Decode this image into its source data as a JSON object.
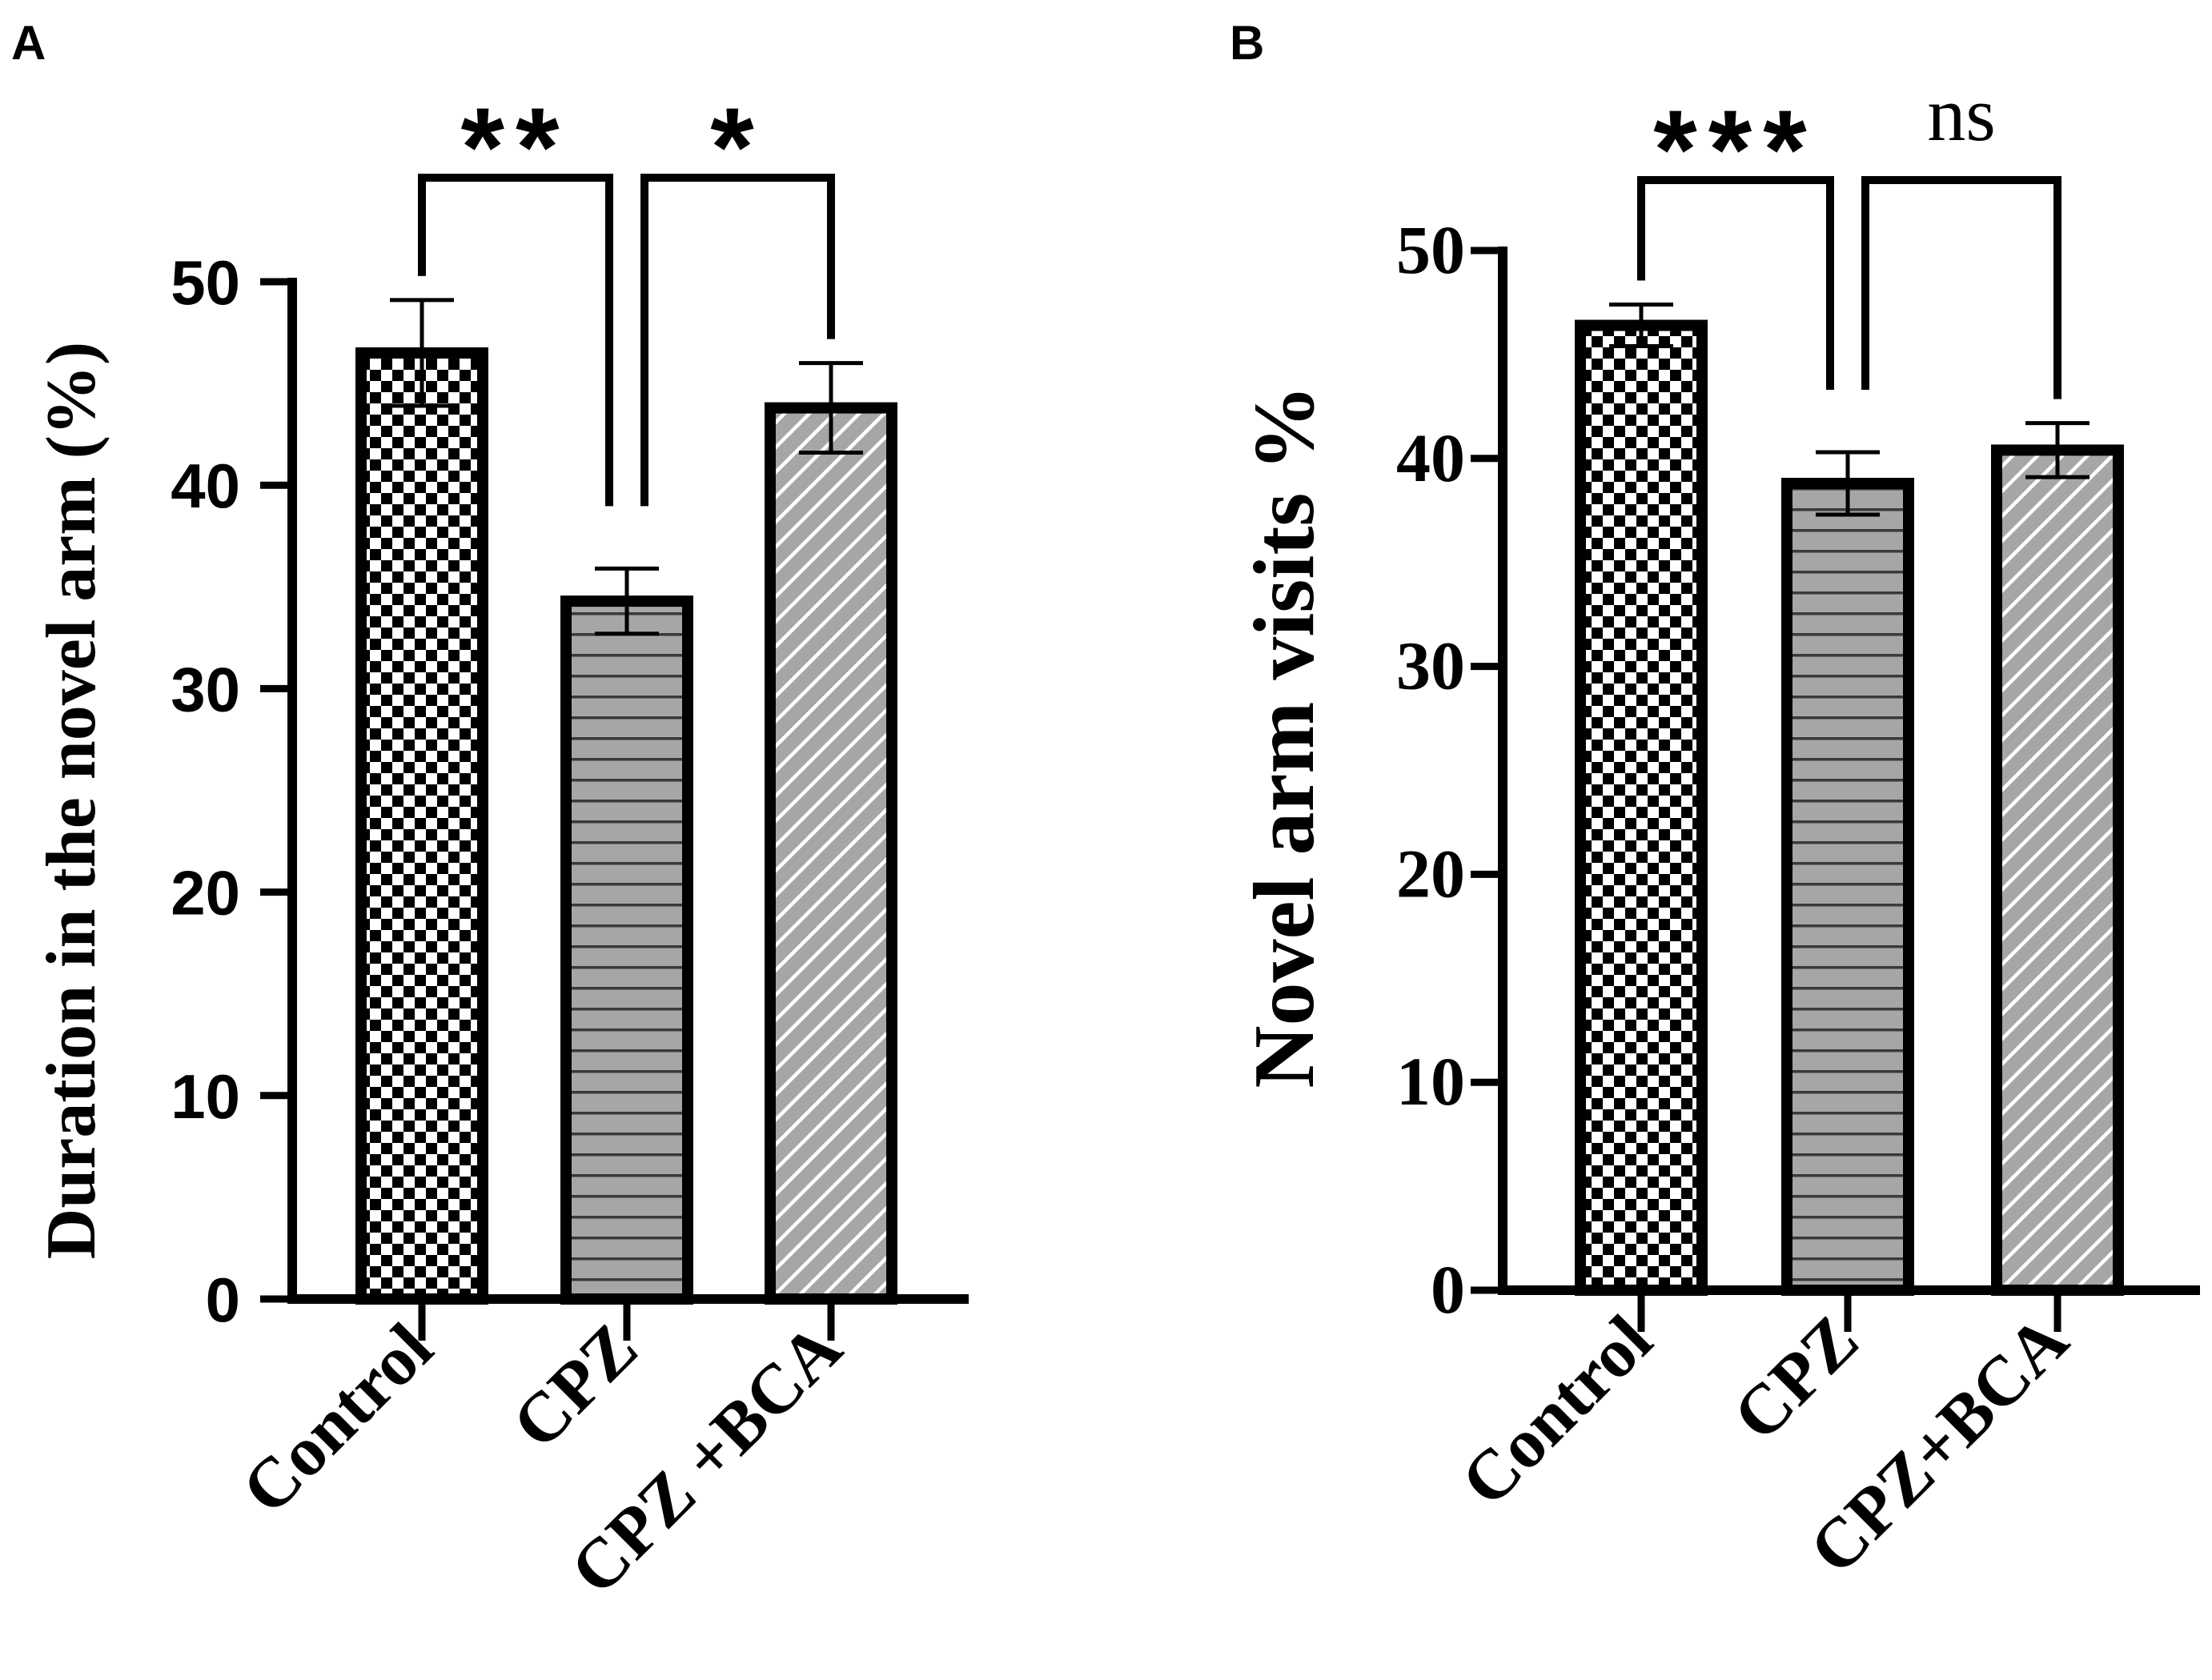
{
  "figure_title": "",
  "chart_data": [
    {
      "panel": "A",
      "type": "bar",
      "categories": [
        "Control",
        "CPZ",
        "CPZ +BCA"
      ],
      "values": [
        46.5,
        34.3,
        43.8
      ],
      "errors": [
        2.6,
        1.6,
        2.2
      ],
      "patterns": [
        "checker",
        "hlines",
        "diagonal"
      ],
      "title": "",
      "xlabel": "",
      "ylabel": "Duration in the novel arm (%)",
      "ylim": [
        0,
        50
      ],
      "yticks": [
        "0",
        "10",
        "20",
        "30",
        "40",
        "50"
      ],
      "significance": [
        {
          "from": 0,
          "to": 1,
          "label": "**"
        },
        {
          "from": 1,
          "to": 2,
          "label": "*"
        }
      ],
      "grid": false,
      "legend": "none"
    },
    {
      "panel": "B",
      "type": "bar",
      "categories": [
        "Control",
        "CPZ",
        "CPZ+BCA"
      ],
      "values": [
        46.4,
        38.8,
        40.4
      ],
      "errors": [
        1.0,
        1.5,
        1.3
      ],
      "patterns": [
        "checker",
        "hlines",
        "diagonal"
      ],
      "title": "",
      "xlabel": "",
      "ylabel": "Novel arm visits %",
      "ylim": [
        0,
        50
      ],
      "yticks": [
        "0",
        "10",
        "20",
        "30",
        "40",
        "50"
      ],
      "significance": [
        {
          "from": 0,
          "to": 1,
          "label": "***"
        },
        {
          "from": 1,
          "to": 2,
          "label": "ns"
        }
      ],
      "grid": false,
      "legend": "none"
    }
  ],
  "colors": {
    "bar_outline": "#000000",
    "checker_dark": "#000000",
    "checker_light": "#ffffff",
    "gray_fill": "#a6a6a6",
    "hatch_line_on_gray": "#ffffff",
    "hline_on_gray": "#3a3a3a"
  }
}
